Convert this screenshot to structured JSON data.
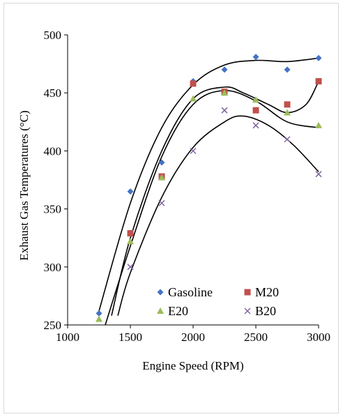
{
  "chart_data": {
    "type": "scatter",
    "xlabel": "Engine Speed (RPM)",
    "ylabel": "Exhaust Gas Temperatures (°C)",
    "xlim": [
      1000,
      3000
    ],
    "ylim": [
      250,
      500
    ],
    "xticks": [
      1000,
      1500,
      2000,
      2500,
      3000
    ],
    "yticks": [
      250,
      300,
      350,
      400,
      450,
      500
    ],
    "grid": false,
    "legend_placement": "bottom-center, inside",
    "trendlines": "polynomial",
    "series": [
      {
        "name": "Gasoline",
        "marker": "diamond",
        "color": "#4472C4",
        "x": [
          1250,
          1500,
          1750,
          2000,
          2250,
          2500,
          2750,
          3000
        ],
        "y": [
          260,
          365,
          390,
          460,
          470,
          481,
          470,
          480
        ]
      },
      {
        "name": "M20",
        "marker": "square",
        "color": "#C0504D",
        "x": [
          1500,
          1750,
          2000,
          2250,
          2500,
          2750,
          3000
        ],
        "y": [
          329,
          378,
          458,
          451,
          435,
          440,
          460
        ]
      },
      {
        "name": "E20",
        "marker": "triangle",
        "color": "#9BBB59",
        "x": [
          1250,
          1500,
          1750,
          2000,
          2250,
          2500,
          2750,
          3000
        ],
        "y": [
          255,
          322,
          377,
          445,
          450,
          444,
          433,
          422
        ]
      },
      {
        "name": "B20",
        "marker": "x",
        "color": "#8064A2",
        "x": [
          1500,
          1750,
          2000,
          2250,
          2500,
          2750,
          3000
        ],
        "y": [
          300,
          355,
          400,
          435,
          422,
          410,
          380
        ]
      }
    ],
    "trend_curves": [
      {
        "series": "Gasoline",
        "x": [
          1250,
          1500,
          1750,
          2000,
          2250,
          2500,
          2750,
          3000
        ],
        "y": [
          262,
          355,
          420,
          457,
          474,
          478,
          477,
          480
        ]
      },
      {
        "series": "M20",
        "x": [
          1350,
          1500,
          1750,
          2000,
          2250,
          2400,
          2600,
          2750,
          2900,
          3000
        ],
        "y": [
          258,
          325,
          400,
          445,
          455,
          450,
          440,
          433,
          440,
          460
        ]
      },
      {
        "series": "E20",
        "x": [
          1300,
          1500,
          1750,
          2000,
          2250,
          2500,
          2750,
          3000
        ],
        "y": [
          250,
          318,
          395,
          440,
          452,
          443,
          425,
          420
        ]
      },
      {
        "series": "B20",
        "x": [
          1400,
          1500,
          1750,
          2000,
          2250,
          2400,
          2600,
          2800,
          3000
        ],
        "y": [
          258,
          295,
          360,
          403,
          425,
          430,
          422,
          405,
          382
        ]
      }
    ]
  }
}
